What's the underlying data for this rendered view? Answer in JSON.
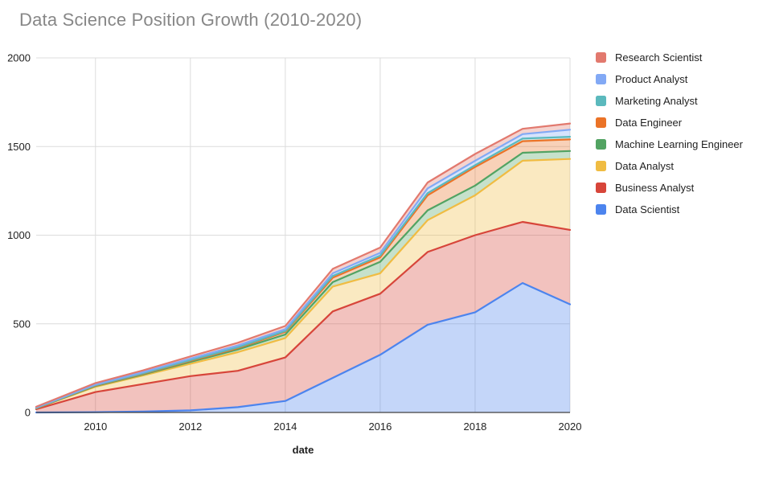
{
  "title": "Data Science Position Growth (2010-2020)",
  "chart_data": {
    "type": "area",
    "stacked": true,
    "title": "Data Science Position Growth (2010-2020)",
    "xlabel": "date",
    "ylabel": "",
    "x": [
      2008.75,
      2010,
      2011,
      2012,
      2013,
      2014,
      2015,
      2016,
      2017,
      2018,
      2019,
      2020
    ],
    "xlim": [
      2008.75,
      2020
    ],
    "ylim": [
      0,
      2000
    ],
    "x_ticks": [
      2010,
      2012,
      2014,
      2016,
      2018,
      2020
    ],
    "y_ticks": [
      0,
      500,
      1000,
      1500,
      2000
    ],
    "grid": true,
    "legend_position": "right",
    "fill_opacity": 0.33,
    "series": [
      {
        "name": "Data Scientist",
        "color": "#4C84EE",
        "values": [
          0,
          2,
          5,
          12,
          30,
          65,
          195,
          325,
          495,
          565,
          730,
          610
        ]
      },
      {
        "name": "Business Analyst",
        "color": "#D7453A",
        "values": [
          18,
          113,
          155,
          193,
          205,
          245,
          375,
          345,
          410,
          435,
          345,
          420
        ]
      },
      {
        "name": "Data Analyst",
        "color": "#F0BC42",
        "values": [
          5,
          30,
          48,
          70,
          105,
          110,
          140,
          115,
          180,
          225,
          345,
          400
        ]
      },
      {
        "name": "Machine Learning Engineer",
        "color": "#52A362",
        "values": [
          1,
          4,
          6,
          10,
          15,
          20,
          25,
          65,
          55,
          55,
          45,
          45
        ]
      },
      {
        "name": "Data Engineer",
        "color": "#EB7327",
        "values": [
          1,
          3,
          4,
          6,
          8,
          15,
          25,
          25,
          85,
          105,
          65,
          65
        ]
      },
      {
        "name": "Marketing Analyst",
        "color": "#5BB9BD",
        "values": [
          1,
          2,
          3,
          4,
          5,
          5,
          10,
          10,
          12,
          10,
          15,
          15
        ]
      },
      {
        "name": "Product Analyst",
        "color": "#82A9F5",
        "values": [
          2,
          4,
          6,
          9,
          10,
          10,
          15,
          15,
          27,
          25,
          25,
          40
        ]
      },
      {
        "name": "Research Scientist",
        "color": "#E2796E",
        "values": [
          4,
          8,
          10,
          12,
          15,
          18,
          25,
          30,
          33,
          38,
          30,
          35
        ]
      }
    ],
    "legend": [
      "Research Scientist",
      "Product Analyst",
      "Marketing Analyst",
      "Data Engineer",
      "Machine Learning Engineer",
      "Data Analyst",
      "Business Analyst",
      "Data Scientist"
    ]
  },
  "styles": {
    "title_color": "#878787",
    "tick_label_color": "#1f1f1f",
    "gridline_color": "#dcdcdc",
    "baseline_color": "#424242",
    "background": "#ffffff"
  }
}
